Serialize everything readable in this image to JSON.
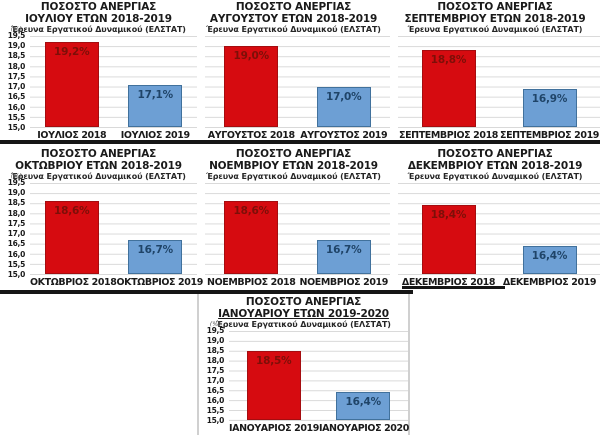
{
  "page": {
    "background": "#ffffff"
  },
  "colors": {
    "bar_red": "#d60b10",
    "bar_red_border": "#a50d10",
    "bar_red_label": "#7d0f08",
    "bar_blue": "#6d9fd4",
    "bar_blue_border": "#41719c",
    "bar_blue_label": "#1f4468",
    "gridline": "#d9d9d9",
    "panel_border": "#161616"
  },
  "y_axis": {
    "unit_label": "(%)",
    "min": 15.0,
    "max": 19.5,
    "ticks": [
      "19,5",
      "19,0",
      "18,5",
      "18,0",
      "17,5",
      "17,0",
      "16,5",
      "16,0",
      "15,5",
      "15,0"
    ]
  },
  "chart_data": [
    {
      "type": "bar",
      "title": "ΠΟΣΟΣΤΟ ΑΝΕΡΓΙΑΣ",
      "title_line2": "ΙΟΥΛΙΟΥ ΕΤΩΝ 2018-2019",
      "subtitle": "Έρευνα Εργατικού Δυναμικού (ΕΛΣΤΑΤ)",
      "categories": [
        "ΙΟΥΛΙΟΣ 2018",
        "ΙΟΥΛΙΟΣ 2019"
      ],
      "values": [
        19.2,
        17.1
      ],
      "value_labels": [
        "19,2%",
        "17,1%"
      ],
      "bar_colors": [
        "#d60b10",
        "#6d9fd4"
      ],
      "bar_border_colors": [
        "#a50d10",
        "#41719c"
      ],
      "value_label_colors": [
        "#7d0f08",
        "#1f4468"
      ],
      "ylabel": "(%)",
      "ylim": [
        15.0,
        19.5
      ],
      "grid": true,
      "show_y_axis": true
    },
    {
      "type": "bar",
      "title": "ΠΟΣΟΣΤΟ ΑΝΕΡΓΙΑΣ",
      "title_line2": "ΑΥΓΟΥΣΤΟΥ ΕΤΩΝ 2018-2019",
      "subtitle": "Έρευνα Εργατικού Δυναμικού (ΕΛΣΤΑΤ)",
      "categories": [
        "ΑΥΓΟΥΣΤΟΣ 2018",
        "ΑΥΓΟΥΣΤΟΣ 2019"
      ],
      "values": [
        19.0,
        17.0
      ],
      "value_labels": [
        "19,0%",
        "17,0%"
      ],
      "bar_colors": [
        "#d60b10",
        "#6d9fd4"
      ],
      "bar_border_colors": [
        "#a50d10",
        "#41719c"
      ],
      "value_label_colors": [
        "#7d0f08",
        "#1f4468"
      ],
      "ylabel": "(%)",
      "ylim": [
        15.0,
        19.5
      ],
      "grid": true,
      "show_y_axis": false
    },
    {
      "type": "bar",
      "title": "ΠΟΣΟΣΤΟ ΑΝΕΡΓΙΑΣ",
      "title_line2": "ΣΕΠΤΕΜΒΡΙΟΥ ΕΤΩΝ 2018-2019",
      "subtitle": "Έρευνα Εργατικού Δυναμικού (ΕΛΣΤΑΤ)",
      "categories": [
        "ΣΕΠΤΕΜΒΡΙΟΣ 2018",
        "ΣΕΠΤΕΜΒΡΙΟΣ 2019"
      ],
      "values": [
        18.8,
        16.9
      ],
      "value_labels": [
        "18,8%",
        "16,9%"
      ],
      "bar_colors": [
        "#d60b10",
        "#6d9fd4"
      ],
      "bar_border_colors": [
        "#a50d10",
        "#41719c"
      ],
      "value_label_colors": [
        "#7d0f08",
        "#1f4468"
      ],
      "ylabel": "(%)",
      "ylim": [
        15.0,
        19.5
      ],
      "grid": true,
      "show_y_axis": false
    },
    {
      "type": "bar",
      "title": "ΠΟΣΟΣΤΟ ΑΝΕΡΓΙΑΣ",
      "title_line2": "ΟΚΤΩΒΡΙΟΥ ΕΤΩΝ 2018-2019",
      "subtitle": "Έρευνα Εργατικού Δυναμικού (ΕΛΣΤΑΤ)",
      "categories": [
        "ΟΚΤΩΒΡΙΟΣ 2018",
        "ΟΚΤΩΒΡΙΟΣ 2019"
      ],
      "values": [
        18.6,
        16.7
      ],
      "value_labels": [
        "18,6%",
        "16,7%"
      ],
      "bar_colors": [
        "#d60b10",
        "#6d9fd4"
      ],
      "bar_border_colors": [
        "#a50d10",
        "#41719c"
      ],
      "value_label_colors": [
        "#7d0f08",
        "#1f4468"
      ],
      "ylabel": "(%)",
      "ylim": [
        15.0,
        19.5
      ],
      "grid": true,
      "show_y_axis": true
    },
    {
      "type": "bar",
      "title": "ΠΟΣΟΣΤΟ ΑΝΕΡΓΙΑΣ",
      "title_line2": "ΝΟΕΜΒΡΙΟΥ ΕΤΩΝ 2018-2019",
      "subtitle": "Έρευνα Εργατικού Δυναμικού (ΕΛΣΤΑΤ)",
      "categories": [
        "ΝΟΕΜΒΡΙΟΣ 2018",
        "ΝΟΕΜΒΡΙΟΣ 2019"
      ],
      "values": [
        18.6,
        16.7
      ],
      "value_labels": [
        "18,6%",
        "16,7%"
      ],
      "bar_colors": [
        "#d60b10",
        "#6d9fd4"
      ],
      "bar_border_colors": [
        "#a50d10",
        "#41719c"
      ],
      "value_label_colors": [
        "#7d0f08",
        "#1f4468"
      ],
      "ylabel": "(%)",
      "ylim": [
        15.0,
        19.5
      ],
      "grid": true,
      "show_y_axis": false
    },
    {
      "type": "bar",
      "title": "ΠΟΣΟΣΤΟ ΑΝΕΡΓΙΑΣ",
      "title_line2": "ΔΕΚΕΜΒΡΙΟΥ ΕΤΩΝ 2018-2019",
      "subtitle": "Έρευνα Εργατικού Δυναμικού (ΕΛΣΤΑΤ)",
      "categories": [
        "ΔΕΚΕΜΒΡΙΟΣ 2018",
        "ΔΕΚΕΜΒΡΙΟΣ 2019"
      ],
      "values": [
        18.4,
        16.4
      ],
      "value_labels": [
        "18,4%",
        "16,4%"
      ],
      "bar_colors": [
        "#d60b10",
        "#6d9fd4"
      ],
      "bar_border_colors": [
        "#a50d10",
        "#41719c"
      ],
      "value_label_colors": [
        "#7d0f08",
        "#1f4468"
      ],
      "ylabel": "(%)",
      "ylim": [
        15.0,
        19.5
      ],
      "grid": true,
      "show_y_axis": false
    },
    {
      "type": "bar",
      "title": "ΠΟΣΟΣΤΟ ΑΝΕΡΓΙΑΣ",
      "title_line2": "ΙΑΝΟΥΑΡΙΟΥ ΕΤΩΝ 2019-2020",
      "subtitle": "Έρευνα Εργατικού Δυναμικού (ΕΛΣΤΑΤ)",
      "categories": [
        "ΙΑΝΟΥΑΡΙΟΣ 2019",
        "ΙΑΝΟΥΑΡΙΟΣ 2020"
      ],
      "values": [
        18.5,
        16.4
      ],
      "value_labels": [
        "18,5%",
        "16,4%"
      ],
      "bar_colors": [
        "#d60b10",
        "#6d9fd4"
      ],
      "bar_border_colors": [
        "#a50d10",
        "#41719c"
      ],
      "value_label_colors": [
        "#7d0f08",
        "#1f4468"
      ],
      "ylabel": "(%)",
      "ylim": [
        15.0,
        19.5
      ],
      "grid": true,
      "show_y_axis": true,
      "title_line2_underlined": true
    }
  ]
}
